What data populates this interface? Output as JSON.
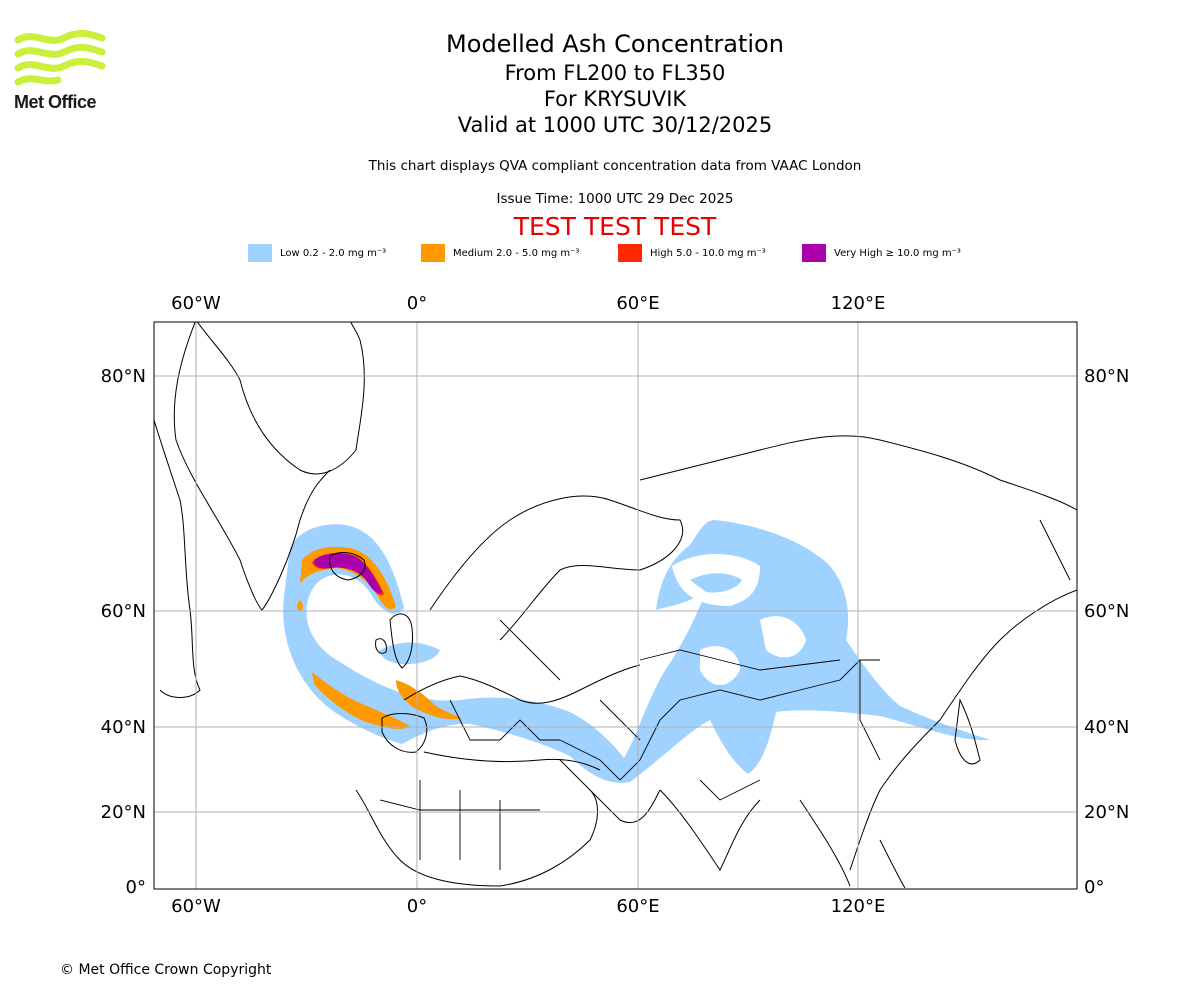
{
  "logo": {
    "text": "Met Office"
  },
  "title": {
    "main": "Modelled Ash Concentration",
    "levels": "From FL200 to FL350",
    "volcano": "For KRYSUVIK",
    "valid": "Valid at 1000 UTC 30/12/2025"
  },
  "subtitle": "This chart displays QVA compliant concentration data from VAAC London",
  "issue_time": "Issue Time: 1000 UTC 29 Dec 2025",
  "test_banner": "TEST TEST TEST",
  "legend": [
    {
      "label": "Low 0.2 - 2.0 mg m⁻³",
      "color": "#a0d2ff"
    },
    {
      "label": "Medium 2.0 - 5.0 mg m⁻³",
      "color": "#ff9900"
    },
    {
      "label": "High 5.0 - 10.0 mg m⁻³",
      "color": "#ff2800"
    },
    {
      "label": "Very High ≥ 10.0 mg m⁻³",
      "color": "#aa00aa"
    }
  ],
  "map": {
    "lon_ticks": [
      "60°W",
      "0°",
      "60°E",
      "120°E"
    ],
    "lat_ticks": [
      "80°N",
      "60°N",
      "40°N",
      "20°N",
      "0°"
    ]
  },
  "copyright": "© Met Office Crown Copyright"
}
